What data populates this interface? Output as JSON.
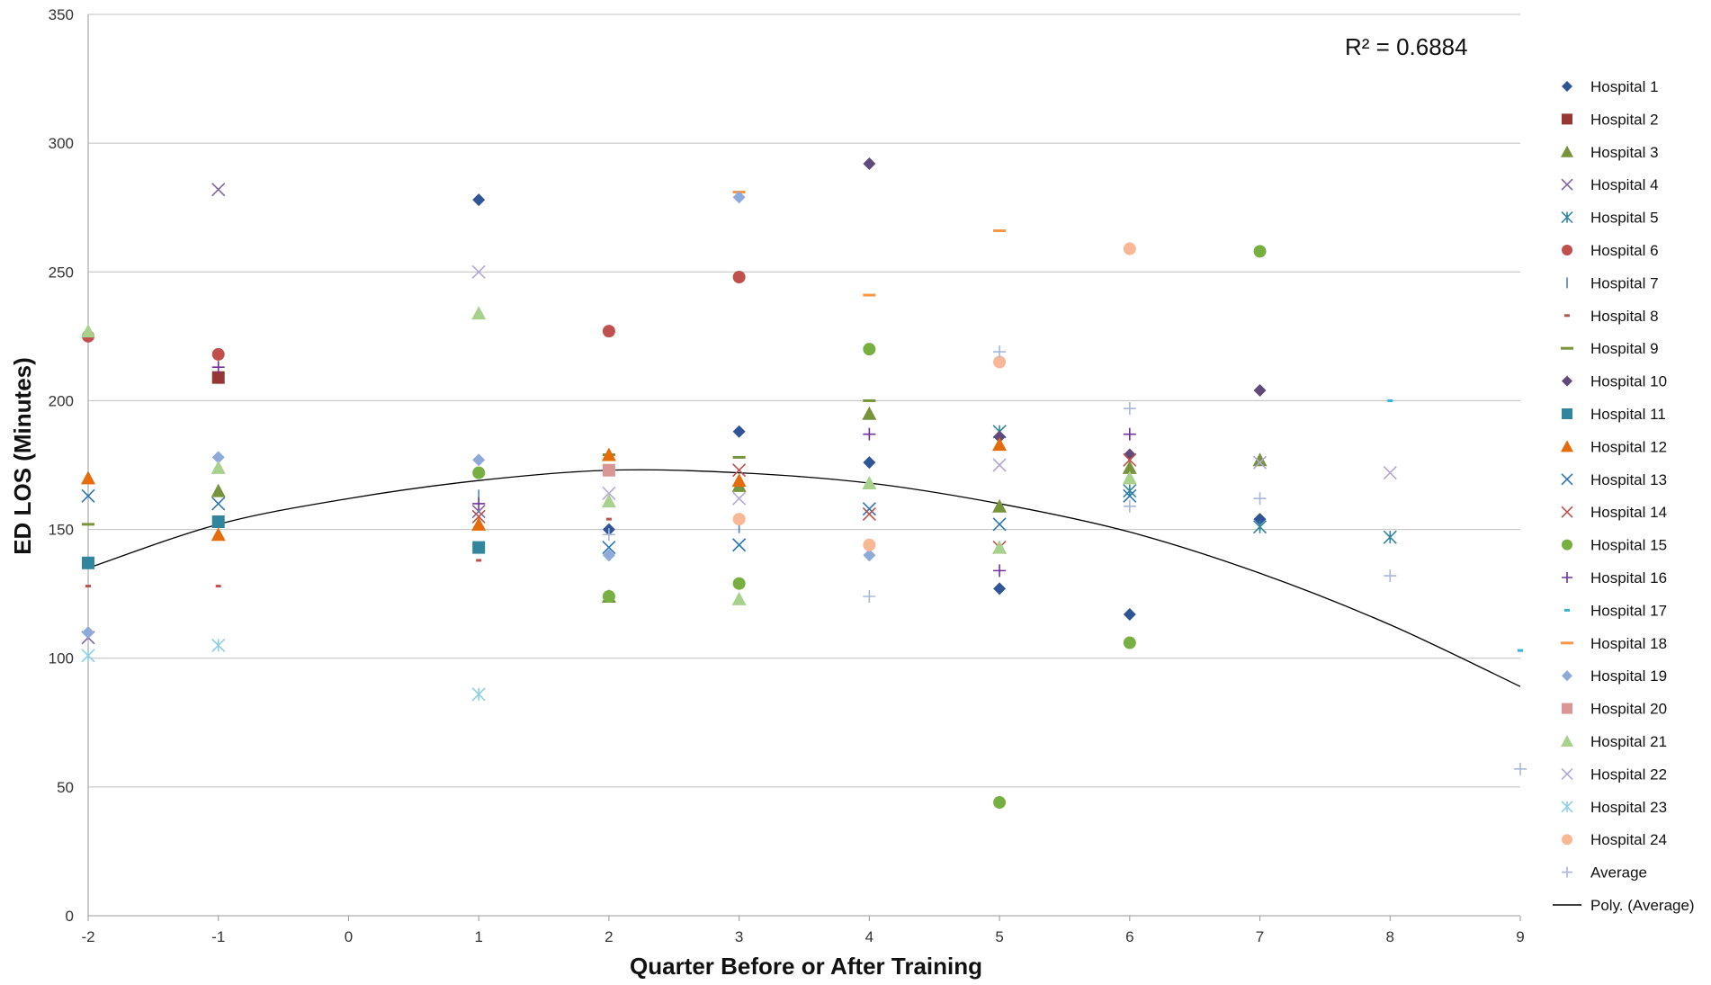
{
  "chart_data": {
    "type": "scatter",
    "xlabel": "Quarter Before or After Training",
    "ylabel": "ED LOS (Minutes)",
    "xlim": [
      -2,
      9
    ],
    "ylim": [
      0,
      350
    ],
    "xticks": [
      -2,
      -1,
      0,
      1,
      2,
      3,
      4,
      5,
      6,
      7,
      8,
      9
    ],
    "yticks": [
      0,
      50,
      100,
      150,
      200,
      250,
      300,
      350
    ],
    "grid": "horizontal",
    "legend_position": "right",
    "annotation": "R² = 0.6884",
    "trendline": {
      "name": "Poly. (Average)",
      "type": "polynomial",
      "order": 2,
      "fit_to": "Average",
      "color": "#000000",
      "points": [
        [
          -2,
          135
        ],
        [
          -1,
          152
        ],
        [
          0,
          162
        ],
        [
          1,
          169
        ],
        [
          2,
          173
        ],
        [
          3,
          172
        ],
        [
          4,
          168
        ],
        [
          5,
          160
        ],
        [
          6,
          149
        ],
        [
          7,
          133
        ],
        [
          8,
          113
        ],
        [
          9,
          89
        ]
      ]
    },
    "series": [
      {
        "name": "Hospital 1",
        "marker": "diamond",
        "color": "#2f5597",
        "points": [
          [
            1,
            278
          ],
          [
            2,
            150
          ],
          [
            3,
            188
          ],
          [
            4,
            176
          ],
          [
            5,
            127
          ],
          [
            6,
            117
          ],
          [
            7,
            154
          ]
        ]
      },
      {
        "name": "Hospital 2",
        "marker": "square",
        "color": "#953735",
        "points": [
          [
            -1,
            209
          ]
        ]
      },
      {
        "name": "Hospital 3",
        "marker": "triangle",
        "color": "#77933c",
        "points": [
          [
            -1,
            165
          ],
          [
            2,
            124
          ],
          [
            3,
            167
          ],
          [
            4,
            195
          ],
          [
            5,
            159
          ],
          [
            6,
            174
          ],
          [
            7,
            177
          ]
        ]
      },
      {
        "name": "Hospital 4",
        "marker": "x",
        "color": "#8064a2",
        "points": [
          [
            -2,
            108
          ],
          [
            -1,
            282
          ],
          [
            1,
            157
          ]
        ]
      },
      {
        "name": "Hospital 5",
        "marker": "star",
        "color": "#31859c",
        "points": [
          [
            5,
            188
          ],
          [
            6,
            165
          ],
          [
            7,
            151
          ],
          [
            8,
            147
          ]
        ]
      },
      {
        "name": "Hospital 6",
        "marker": "circle",
        "color": "#c0504d",
        "points": [
          [
            -2,
            225
          ],
          [
            -1,
            218
          ],
          [
            2,
            227
          ],
          [
            3,
            248
          ]
        ]
      },
      {
        "name": "Hospital 7",
        "marker": "vline",
        "color": "#4f81bd",
        "points": [
          [
            1,
            163
          ],
          [
            3,
            151
          ]
        ]
      },
      {
        "name": "Hospital 8",
        "marker": "dash",
        "color": "#c0504d",
        "points": [
          [
            -2,
            128
          ],
          [
            -1,
            128
          ],
          [
            1,
            138
          ],
          [
            2,
            154
          ]
        ]
      },
      {
        "name": "Hospital 9",
        "marker": "hline",
        "color": "#77933c",
        "points": [
          [
            -2,
            152
          ],
          [
            2,
            179
          ],
          [
            3,
            178
          ],
          [
            4,
            200
          ]
        ]
      },
      {
        "name": "Hospital 10",
        "marker": "diamond",
        "color": "#604a7b",
        "points": [
          [
            4,
            292
          ],
          [
            5,
            186
          ],
          [
            6,
            179
          ],
          [
            7,
            204
          ]
        ]
      },
      {
        "name": "Hospital 11",
        "marker": "square",
        "color": "#31859c",
        "points": [
          [
            -2,
            137
          ],
          [
            -1,
            153
          ],
          [
            1,
            143
          ]
        ]
      },
      {
        "name": "Hospital 12",
        "marker": "triangle",
        "color": "#e46c0a",
        "points": [
          [
            -2,
            170
          ],
          [
            -1,
            148
          ],
          [
            1,
            152
          ],
          [
            2,
            179
          ],
          [
            3,
            169
          ],
          [
            5,
            183
          ]
        ]
      },
      {
        "name": "Hospital 13",
        "marker": "x",
        "color": "#2e75b6",
        "points": [
          [
            -2,
            163
          ],
          [
            -1,
            160
          ],
          [
            2,
            143
          ],
          [
            3,
            144
          ],
          [
            4,
            158
          ],
          [
            5,
            152
          ],
          [
            6,
            163
          ]
        ]
      },
      {
        "name": "Hospital 14",
        "marker": "x",
        "color": "#c0504d",
        "points": [
          [
            1,
            155
          ],
          [
            3,
            173
          ],
          [
            4,
            156
          ],
          [
            5,
            143
          ],
          [
            6,
            177
          ]
        ]
      },
      {
        "name": "Hospital 15",
        "marker": "circle",
        "color": "#77b041",
        "points": [
          [
            1,
            172
          ],
          [
            2,
            124
          ],
          [
            3,
            129
          ],
          [
            4,
            220
          ],
          [
            5,
            44
          ],
          [
            6,
            106
          ],
          [
            7,
            258
          ]
        ]
      },
      {
        "name": "Hospital 16",
        "marker": "plus",
        "color": "#7030a0",
        "points": [
          [
            -1,
            213
          ],
          [
            1,
            160
          ],
          [
            4,
            187
          ],
          [
            5,
            134
          ],
          [
            6,
            187
          ]
        ]
      },
      {
        "name": "Hospital 17",
        "marker": "dash",
        "color": "#31b5d6",
        "points": [
          [
            8,
            200
          ],
          [
            9,
            103
          ]
        ]
      },
      {
        "name": "Hospital 18",
        "marker": "hline",
        "color": "#f79646",
        "points": [
          [
            3,
            281
          ],
          [
            4,
            241
          ],
          [
            5,
            266
          ]
        ]
      },
      {
        "name": "Hospital 19",
        "marker": "diamond",
        "color": "#8eaadb",
        "points": [
          [
            -2,
            110
          ],
          [
            -1,
            178
          ],
          [
            1,
            177
          ],
          [
            2,
            140
          ],
          [
            3,
            279
          ],
          [
            4,
            140
          ]
        ]
      },
      {
        "name": "Hospital 20",
        "marker": "square",
        "color": "#d99694",
        "points": [
          [
            2,
            173
          ]
        ]
      },
      {
        "name": "Hospital 21",
        "marker": "triangle",
        "color": "#a9d18e",
        "points": [
          [
            -2,
            227
          ],
          [
            -1,
            174
          ],
          [
            1,
            234
          ],
          [
            2,
            161
          ],
          [
            3,
            123
          ],
          [
            4,
            168
          ],
          [
            5,
            143
          ],
          [
            6,
            170
          ]
        ]
      },
      {
        "name": "Hospital 22",
        "marker": "x",
        "color": "#b4a7d6",
        "points": [
          [
            1,
            250
          ],
          [
            2,
            164
          ],
          [
            3,
            162
          ],
          [
            5,
            175
          ],
          [
            7,
            176
          ],
          [
            8,
            172
          ]
        ]
      },
      {
        "name": "Hospital 23",
        "marker": "star",
        "color": "#8fcfe2",
        "points": [
          [
            -2,
            101
          ],
          [
            -1,
            105
          ],
          [
            1,
            86
          ]
        ]
      },
      {
        "name": "Hospital 24",
        "marker": "circle",
        "color": "#fab795",
        "points": [
          [
            3,
            154
          ],
          [
            4,
            144
          ],
          [
            5,
            215
          ],
          [
            6,
            259
          ]
        ]
      },
      {
        "name": "Average",
        "marker": "plus",
        "color": "#a8b8dc",
        "points": [
          [
            2,
            148
          ],
          [
            4,
            124
          ],
          [
            5,
            219
          ],
          [
            6,
            197
          ],
          [
            6,
            159
          ],
          [
            7,
            162
          ],
          [
            8,
            132
          ],
          [
            9,
            57
          ]
        ]
      }
    ]
  }
}
